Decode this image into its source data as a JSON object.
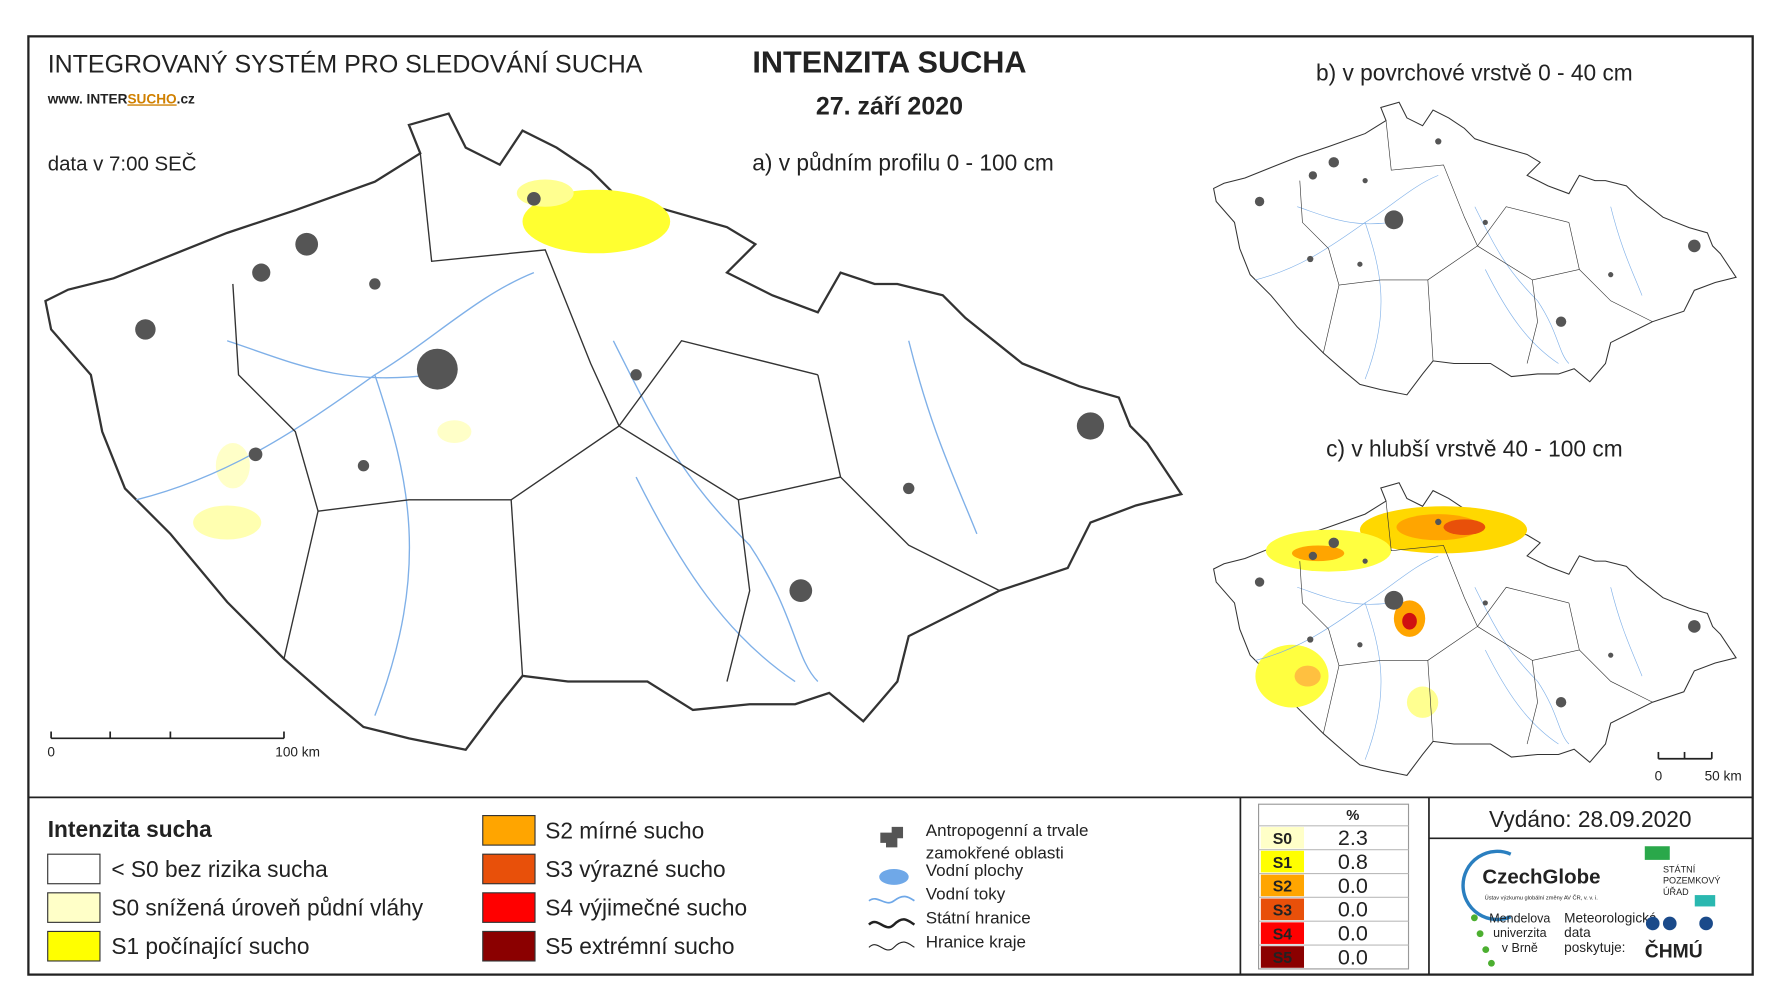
{
  "header": {
    "system": "INTEGROVANÝ SYSTÉM PRO SLEDOVÁNÍ SUCHA",
    "url_prefix": "www. INTER",
    "url_highlight": "SUCHO",
    "url_suffix": ".cz",
    "title": "INTENZITA SUCHA",
    "date": "27. září 2020",
    "data_time": "data v 7:00 SEČ"
  },
  "maps": [
    {
      "label": "a) v půdním profilu 0 - 100 cm"
    },
    {
      "label": "b) v povrchové vrstvě 0 - 40 cm"
    },
    {
      "label": "c) v hlubší vrstvě 40 - 100 cm"
    }
  ],
  "scale_bars": [
    {
      "start": "0",
      "end": "100 km"
    },
    {
      "start": "0",
      "end": "50 km"
    }
  ],
  "legend": {
    "title": "Intenzita sucha",
    "items": [
      {
        "label": "< S0 bez rizika sucha",
        "color": "#ffffff"
      },
      {
        "label": "S0 snížená úroveň půdní vláhy",
        "color": "#ffffc8"
      },
      {
        "label": "S1 počínající sucho",
        "color": "#ffff00"
      },
      {
        "label": "S2 mírné sucho",
        "color": "#ffa500"
      },
      {
        "label": "S3 výrazné sucho",
        "color": "#e8500a"
      },
      {
        "label": "S4 výjimečné sucho",
        "color": "#ff0000"
      },
      {
        "label": "S5 extrémní sucho",
        "color": "#8b0000"
      }
    ]
  },
  "symbols": [
    [
      "Antropogenní a trvale",
      "zamokřené oblasti"
    ],
    [
      "Vodní plochy"
    ],
    [
      "Vodní toky"
    ],
    [
      "Státní hranice"
    ],
    [
      "Hranice kraje"
    ]
  ],
  "table": {
    "header": "%",
    "rows": [
      {
        "class": "S0",
        "value": "2.3",
        "color": "#ffffc8"
      },
      {
        "class": "S1",
        "value": "0.8",
        "color": "#ffff00"
      },
      {
        "class": "S2",
        "value": "0.0",
        "color": "#ffa500"
      },
      {
        "class": "S3",
        "value": "0.0",
        "color": "#e8500a"
      },
      {
        "class": "S4",
        "value": "0.0",
        "color": "#ff0000"
      },
      {
        "class": "S5",
        "value": "0.0",
        "color": "#8b0000"
      }
    ]
  },
  "issued": "Vydáno: 28.09.2020",
  "logos": {
    "czechglobe": "CzechGlobe",
    "czechglobe_sub": "Ústav výzkumu globální změny AV ČR, v. v. i.",
    "spu": [
      "STÁTNÍ",
      "POZEMKOVÝ",
      "ÚŘAD"
    ],
    "mendel": [
      "Mendelova",
      "univerzita",
      "v Brně"
    ],
    "met": [
      "Meteorologická",
      "data",
      "poskytuje:"
    ],
    "chmu": "ČHMÚ"
  }
}
